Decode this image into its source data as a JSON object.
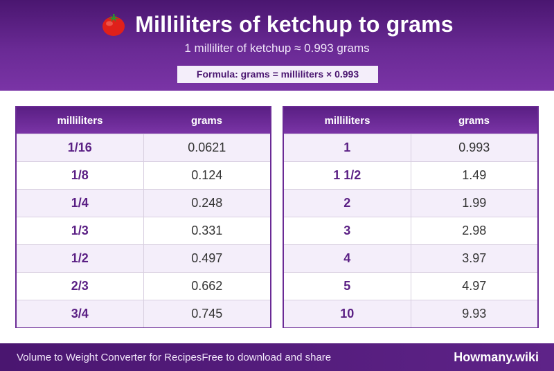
{
  "header": {
    "title": "Milliliters of ketchup to grams",
    "subtitle": "1 milliliter of ketchup ≈ 0.993 grams",
    "formula": "Formula: grams = milliliters × 0.993",
    "icon": "tomato-icon"
  },
  "tables": [
    {
      "col1": "milliliters",
      "col2": "grams",
      "rows": [
        {
          "ml": "1/16",
          "g": "0.0621"
        },
        {
          "ml": "1/8",
          "g": "0.124"
        },
        {
          "ml": "1/4",
          "g": "0.248"
        },
        {
          "ml": "1/3",
          "g": "0.331"
        },
        {
          "ml": "1/2",
          "g": "0.497"
        },
        {
          "ml": "2/3",
          "g": "0.662"
        },
        {
          "ml": "3/4",
          "g": "0.745"
        }
      ]
    },
    {
      "col1": "milliliters",
      "col2": "grams",
      "rows": [
        {
          "ml": "1",
          "g": "0.993"
        },
        {
          "ml": "1 1/2",
          "g": "1.49"
        },
        {
          "ml": "2",
          "g": "1.99"
        },
        {
          "ml": "3",
          "g": "2.98"
        },
        {
          "ml": "4",
          "g": "3.97"
        },
        {
          "ml": "5",
          "g": "4.97"
        },
        {
          "ml": "10",
          "g": "9.93"
        }
      ]
    }
  ],
  "footer": {
    "left_text": "Volume to Weight Converter for Recipes",
    "left_text_2": "Free to download and share",
    "brand": "Howmany.wiki"
  },
  "colors": {
    "primary": "#5a1f84",
    "accent": "#7a34a6",
    "row_alt": "#f4eefa"
  }
}
